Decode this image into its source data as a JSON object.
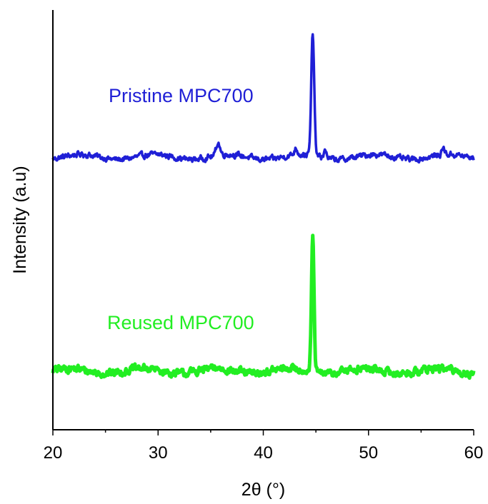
{
  "chart_data": {
    "type": "line",
    "xlabel": "2θ (°)",
    "ylabel": "Intensity (a.u)",
    "xlim": [
      20,
      60
    ],
    "xticks": [
      20,
      30,
      40,
      50,
      60
    ],
    "ylim": [
      0,
      100
    ],
    "y_tick_labels_shown": false,
    "grid": false,
    "legend": "inline labels",
    "series": [
      {
        "name": "Pristine MPC700",
        "color": "#1f1fd6",
        "baseline": 65,
        "noise": 1.2,
        "peaks": [
          {
            "x": 35.7,
            "height": 3.0,
            "width": 0.18
          },
          {
            "x": 43.1,
            "height": 1.5,
            "width": 0.15
          },
          {
            "x": 44.7,
            "height": 29.0,
            "width": 0.14
          },
          {
            "x": 45.9,
            "height": 1.6,
            "width": 0.15
          },
          {
            "x": 57.1,
            "height": 1.5,
            "width": 0.15
          }
        ]
      },
      {
        "name": "Reused MPC700",
        "color": "#22ee22",
        "baseline": 14,
        "noise": 1.6,
        "peaks": [
          {
            "x": 44.7,
            "height": 32.0,
            "width": 0.12
          }
        ]
      }
    ]
  }
}
